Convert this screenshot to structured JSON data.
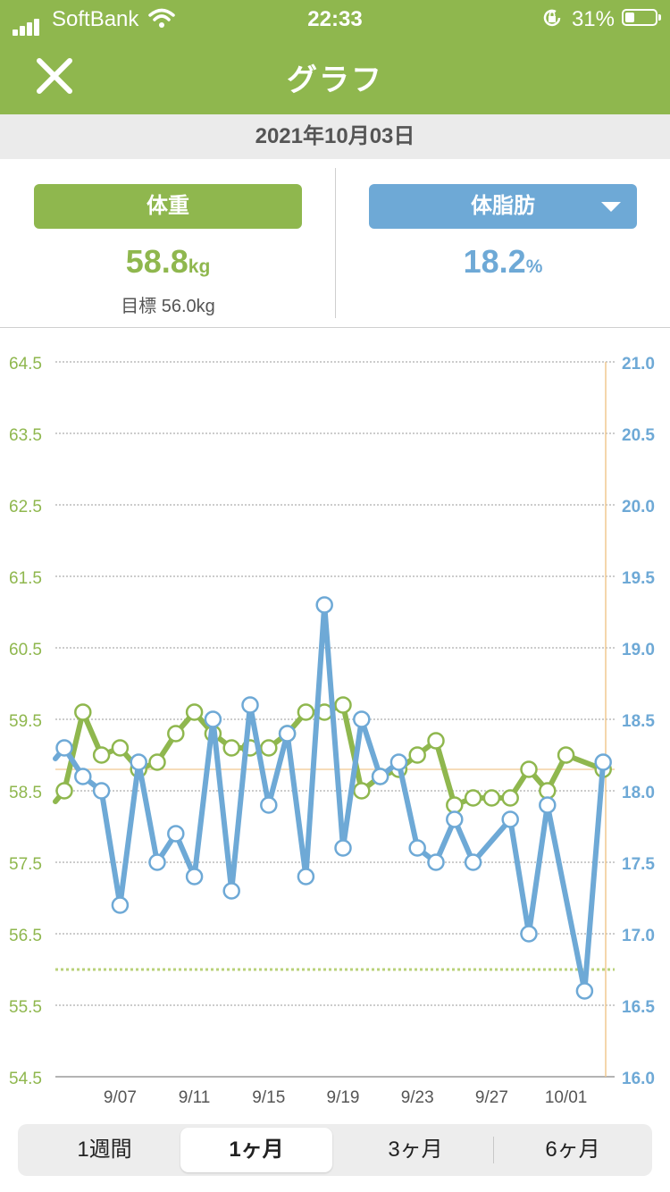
{
  "status_bar": {
    "carrier": "SoftBank",
    "time": "22:33",
    "battery": "31%"
  },
  "header": {
    "title": "グラフ"
  },
  "date": "2021年10月03日",
  "weight": {
    "label": "体重",
    "value": "58.8",
    "unit": "kg",
    "goal_text": "目標 56.0kg",
    "color": "#8fb74e"
  },
  "body_fat": {
    "label": "体脂肪",
    "value": "18.2",
    "unit": "%",
    "color": "#6ea9d6"
  },
  "tabs": [
    {
      "label": "1週間",
      "active": false
    },
    {
      "label": "1ヶ月",
      "active": true
    },
    {
      "label": "3ヶ月",
      "active": false
    },
    {
      "label": "6ヶ月",
      "active": false
    }
  ],
  "chart_data": {
    "type": "line",
    "x_tick_labels": [
      "9/07",
      "9/11",
      "9/15",
      "9/19",
      "9/23",
      "9/27",
      "10/01"
    ],
    "x_tick_day_index": [
      3,
      7,
      11,
      15,
      19,
      23,
      27
    ],
    "left_axis": {
      "ylim": [
        54.5,
        64.5
      ],
      "ticks": [
        "64.5",
        "63.5",
        "62.5",
        "61.5",
        "60.5",
        "59.5",
        "58.5",
        "57.5",
        "56.5",
        "55.5",
        "54.5"
      ]
    },
    "right_axis": {
      "ylim": [
        16.0,
        21.0
      ],
      "ticks": [
        "21.0",
        "20.5",
        "20.0",
        "19.5",
        "19.0",
        "18.5",
        "18.0",
        "17.5",
        "17.0",
        "16.5",
        "16.0"
      ]
    },
    "goal_weight": 56.0,
    "current_weight": 58.8,
    "series": [
      {
        "axis": "left",
        "color": "#8fb74e",
        "day_index": [
          0,
          1,
          2,
          3,
          4,
          5,
          6,
          7,
          8,
          9,
          10,
          11,
          12,
          13,
          14,
          15,
          16,
          17,
          18,
          19,
          20,
          21,
          22,
          23,
          24,
          25,
          26,
          27,
          29
        ],
        "values": [
          58.5,
          59.6,
          59.0,
          59.1,
          58.8,
          58.9,
          59.3,
          59.6,
          59.3,
          59.1,
          59.1,
          59.1,
          59.3,
          59.6,
          59.6,
          59.7,
          58.5,
          58.7,
          58.8,
          59.0,
          59.2,
          58.3,
          58.4,
          58.4,
          58.4,
          58.8,
          58.5,
          59.0,
          58.8
        ]
      },
      {
        "axis": "right",
        "color": "#6ea9d6",
        "day_index": [
          0,
          1,
          2,
          3,
          4,
          5,
          6,
          7,
          8,
          9,
          10,
          11,
          12,
          13,
          14,
          15,
          16,
          17,
          18,
          19,
          20,
          21,
          22,
          24,
          25,
          26,
          28,
          29
        ],
        "values": [
          18.3,
          18.1,
          18.0,
          17.2,
          18.2,
          17.5,
          17.7,
          17.4,
          18.5,
          17.3,
          18.6,
          17.9,
          18.4,
          17.4,
          19.3,
          17.6,
          18.5,
          18.1,
          18.2,
          17.6,
          17.5,
          17.8,
          17.5,
          17.8,
          17.0,
          17.9,
          16.6,
          18.2
        ]
      }
    ]
  }
}
